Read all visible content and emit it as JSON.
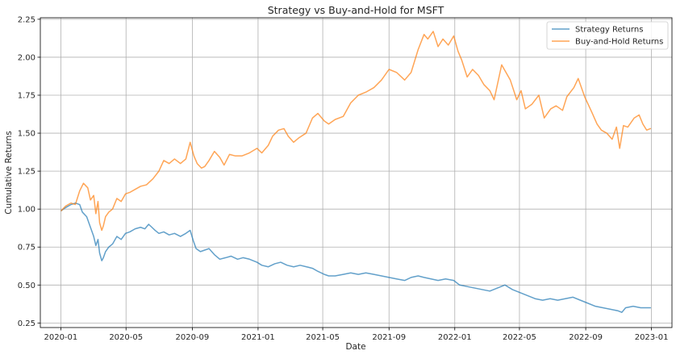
{
  "chart_data": {
    "type": "line",
    "title": "Strategy vs Buy-and-Hold for MSFT",
    "xlabel": "Date",
    "ylabel": "Cumulative Returns",
    "xlim": [
      "2019-11-24",
      "2023-02-08"
    ],
    "ylim": [
      0.22,
      2.26
    ],
    "grid": true,
    "legend_position": "top-right",
    "x_ticks": [
      {
        "date": "2020-01-01",
        "label": "2020-01"
      },
      {
        "date": "2020-05-01",
        "label": "2020-05"
      },
      {
        "date": "2020-09-01",
        "label": "2020-09"
      },
      {
        "date": "2021-01-01",
        "label": "2021-01"
      },
      {
        "date": "2021-05-01",
        "label": "2021-05"
      },
      {
        "date": "2021-09-01",
        "label": "2021-09"
      },
      {
        "date": "2022-01-01",
        "label": "2022-01"
      },
      {
        "date": "2022-05-01",
        "label": "2022-05"
      },
      {
        "date": "2022-09-01",
        "label": "2022-09"
      },
      {
        "date": "2023-01-01",
        "label": "2023-01"
      }
    ],
    "y_ticks": [
      {
        "value": 0.25,
        "label": "0.25"
      },
      {
        "value": 0.5,
        "label": "0.50"
      },
      {
        "value": 0.75,
        "label": "0.75"
      },
      {
        "value": 1.0,
        "label": "1.00"
      },
      {
        "value": 1.25,
        "label": "1.25"
      },
      {
        "value": 1.5,
        "label": "1.50"
      },
      {
        "value": 1.75,
        "label": "1.75"
      },
      {
        "value": 2.0,
        "label": "2.00"
      },
      {
        "value": 2.25,
        "label": "2.25"
      }
    ],
    "series": [
      {
        "name": "Strategy Returns",
        "color": "#1f77b4",
        "points": [
          [
            "2020-01-02",
            0.99
          ],
          [
            "2020-01-10",
            1.01
          ],
          [
            "2020-01-20",
            1.03
          ],
          [
            "2020-01-28",
            1.04
          ],
          [
            "2020-02-05",
            1.03
          ],
          [
            "2020-02-10",
            0.98
          ],
          [
            "2020-02-18",
            0.95
          ],
          [
            "2020-02-25",
            0.88
          ],
          [
            "2020-03-02",
            0.82
          ],
          [
            "2020-03-06",
            0.76
          ],
          [
            "2020-03-10",
            0.8
          ],
          [
            "2020-03-13",
            0.71
          ],
          [
            "2020-03-17",
            0.66
          ],
          [
            "2020-03-20",
            0.68
          ],
          [
            "2020-03-24",
            0.72
          ],
          [
            "2020-03-30",
            0.75
          ],
          [
            "2020-04-06",
            0.77
          ],
          [
            "2020-04-14",
            0.82
          ],
          [
            "2020-04-22",
            0.8
          ],
          [
            "2020-04-30",
            0.84
          ],
          [
            "2020-05-08",
            0.85
          ],
          [
            "2020-05-18",
            0.87
          ],
          [
            "2020-05-28",
            0.88
          ],
          [
            "2020-06-05",
            0.87
          ],
          [
            "2020-06-12",
            0.9
          ],
          [
            "2020-06-18",
            0.88
          ],
          [
            "2020-06-24",
            0.86
          ],
          [
            "2020-07-01",
            0.84
          ],
          [
            "2020-07-10",
            0.85
          ],
          [
            "2020-07-20",
            0.83
          ],
          [
            "2020-07-30",
            0.84
          ],
          [
            "2020-08-10",
            0.82
          ],
          [
            "2020-08-20",
            0.84
          ],
          [
            "2020-08-28",
            0.86
          ],
          [
            "2020-09-03",
            0.79
          ],
          [
            "2020-09-08",
            0.74
          ],
          [
            "2020-09-16",
            0.72
          ],
          [
            "2020-09-24",
            0.73
          ],
          [
            "2020-10-02",
            0.74
          ],
          [
            "2020-10-12",
            0.7
          ],
          [
            "2020-10-22",
            0.67
          ],
          [
            "2020-11-02",
            0.68
          ],
          [
            "2020-11-12",
            0.69
          ],
          [
            "2020-11-24",
            0.67
          ],
          [
            "2020-12-04",
            0.68
          ],
          [
            "2020-12-16",
            0.67
          ],
          [
            "2020-12-30",
            0.65
          ],
          [
            "2021-01-08",
            0.63
          ],
          [
            "2021-01-20",
            0.62
          ],
          [
            "2021-02-01",
            0.64
          ],
          [
            "2021-02-12",
            0.65
          ],
          [
            "2021-02-24",
            0.63
          ],
          [
            "2021-03-08",
            0.62
          ],
          [
            "2021-03-20",
            0.63
          ],
          [
            "2021-04-01",
            0.62
          ],
          [
            "2021-04-12",
            0.61
          ],
          [
            "2021-04-22",
            0.59
          ],
          [
            "2021-05-04",
            0.57
          ],
          [
            "2021-05-12",
            0.56
          ],
          [
            "2021-05-24",
            0.56
          ],
          [
            "2021-06-08",
            0.57
          ],
          [
            "2021-06-22",
            0.58
          ],
          [
            "2021-07-06",
            0.57
          ],
          [
            "2021-07-20",
            0.58
          ],
          [
            "2021-08-04",
            0.57
          ],
          [
            "2021-08-18",
            0.56
          ],
          [
            "2021-09-01",
            0.55
          ],
          [
            "2021-09-15",
            0.54
          ],
          [
            "2021-09-30",
            0.53
          ],
          [
            "2021-10-12",
            0.55
          ],
          [
            "2021-10-25",
            0.56
          ],
          [
            "2021-11-05",
            0.55
          ],
          [
            "2021-11-18",
            0.54
          ],
          [
            "2021-12-01",
            0.53
          ],
          [
            "2021-12-15",
            0.54
          ],
          [
            "2021-12-30",
            0.53
          ],
          [
            "2022-01-10",
            0.5
          ],
          [
            "2022-01-24",
            0.49
          ],
          [
            "2022-02-07",
            0.48
          ],
          [
            "2022-02-21",
            0.47
          ],
          [
            "2022-03-07",
            0.46
          ],
          [
            "2022-03-21",
            0.48
          ],
          [
            "2022-04-04",
            0.5
          ],
          [
            "2022-04-18",
            0.47
          ],
          [
            "2022-05-02",
            0.45
          ],
          [
            "2022-05-16",
            0.43
          ],
          [
            "2022-05-30",
            0.41
          ],
          [
            "2022-06-13",
            0.4
          ],
          [
            "2022-06-27",
            0.41
          ],
          [
            "2022-07-11",
            0.4
          ],
          [
            "2022-07-25",
            0.41
          ],
          [
            "2022-08-08",
            0.42
          ],
          [
            "2022-08-22",
            0.4
          ],
          [
            "2022-09-05",
            0.38
          ],
          [
            "2022-09-19",
            0.36
          ],
          [
            "2022-10-03",
            0.35
          ],
          [
            "2022-10-17",
            0.34
          ],
          [
            "2022-10-31",
            0.33
          ],
          [
            "2022-11-07",
            0.32
          ],
          [
            "2022-11-14",
            0.35
          ],
          [
            "2022-11-28",
            0.36
          ],
          [
            "2022-12-12",
            0.35
          ],
          [
            "2022-12-23",
            0.35
          ],
          [
            "2022-12-30",
            0.35
          ]
        ]
      },
      {
        "name": "Buy-and-Hold Returns",
        "color": "#ff7f0e",
        "points": [
          [
            "2020-01-02",
            0.99
          ],
          [
            "2020-01-10",
            1.02
          ],
          [
            "2020-01-20",
            1.04
          ],
          [
            "2020-01-28",
            1.03
          ],
          [
            "2020-02-05",
            1.12
          ],
          [
            "2020-02-12",
            1.17
          ],
          [
            "2020-02-20",
            1.14
          ],
          [
            "2020-02-25",
            1.06
          ],
          [
            "2020-03-02",
            1.09
          ],
          [
            "2020-03-06",
            0.97
          ],
          [
            "2020-03-10",
            1.05
          ],
          [
            "2020-03-13",
            0.91
          ],
          [
            "2020-03-17",
            0.86
          ],
          [
            "2020-03-20",
            0.89
          ],
          [
            "2020-03-24",
            0.95
          ],
          [
            "2020-03-30",
            0.98
          ],
          [
            "2020-04-06",
            1.0
          ],
          [
            "2020-04-14",
            1.07
          ],
          [
            "2020-04-22",
            1.05
          ],
          [
            "2020-04-30",
            1.1
          ],
          [
            "2020-05-08",
            1.11
          ],
          [
            "2020-05-18",
            1.13
          ],
          [
            "2020-05-28",
            1.15
          ],
          [
            "2020-06-08",
            1.16
          ],
          [
            "2020-06-20",
            1.2
          ],
          [
            "2020-07-01",
            1.25
          ],
          [
            "2020-07-10",
            1.32
          ],
          [
            "2020-07-20",
            1.3
          ],
          [
            "2020-07-30",
            1.33
          ],
          [
            "2020-08-10",
            1.3
          ],
          [
            "2020-08-20",
            1.33
          ],
          [
            "2020-08-28",
            1.44
          ],
          [
            "2020-09-04",
            1.35
          ],
          [
            "2020-09-10",
            1.3
          ],
          [
            "2020-09-18",
            1.27
          ],
          [
            "2020-09-24",
            1.28
          ],
          [
            "2020-10-02",
            1.32
          ],
          [
            "2020-10-12",
            1.38
          ],
          [
            "2020-10-22",
            1.34
          ],
          [
            "2020-10-30",
            1.29
          ],
          [
            "2020-11-09",
            1.36
          ],
          [
            "2020-11-20",
            1.35
          ],
          [
            "2020-12-02",
            1.35
          ],
          [
            "2020-12-16",
            1.37
          ],
          [
            "2020-12-30",
            1.4
          ],
          [
            "2021-01-08",
            1.37
          ],
          [
            "2021-01-20",
            1.42
          ],
          [
            "2021-01-28",
            1.48
          ],
          [
            "2021-02-08",
            1.52
          ],
          [
            "2021-02-18",
            1.53
          ],
          [
            "2021-02-26",
            1.48
          ],
          [
            "2021-03-08",
            1.44
          ],
          [
            "2021-03-18",
            1.47
          ],
          [
            "2021-03-31",
            1.5
          ],
          [
            "2021-04-12",
            1.6
          ],
          [
            "2021-04-22",
            1.63
          ],
          [
            "2021-05-04",
            1.58
          ],
          [
            "2021-05-12",
            1.56
          ],
          [
            "2021-05-24",
            1.59
          ],
          [
            "2021-06-08",
            1.61
          ],
          [
            "2021-06-22",
            1.7
          ],
          [
            "2021-07-06",
            1.75
          ],
          [
            "2021-07-20",
            1.77
          ],
          [
            "2021-08-04",
            1.8
          ],
          [
            "2021-08-18",
            1.85
          ],
          [
            "2021-09-01",
            1.92
          ],
          [
            "2021-09-15",
            1.9
          ],
          [
            "2021-09-30",
            1.85
          ],
          [
            "2021-10-12",
            1.9
          ],
          [
            "2021-10-25",
            2.05
          ],
          [
            "2021-11-05",
            2.15
          ],
          [
            "2021-11-12",
            2.12
          ],
          [
            "2021-11-22",
            2.17
          ],
          [
            "2021-12-01",
            2.07
          ],
          [
            "2021-12-10",
            2.12
          ],
          [
            "2021-12-20",
            2.08
          ],
          [
            "2021-12-30",
            2.14
          ],
          [
            "2022-01-07",
            2.04
          ],
          [
            "2022-01-14",
            1.98
          ],
          [
            "2022-01-24",
            1.87
          ],
          [
            "2022-02-03",
            1.92
          ],
          [
            "2022-02-14",
            1.88
          ],
          [
            "2022-02-24",
            1.82
          ],
          [
            "2022-03-07",
            1.78
          ],
          [
            "2022-03-15",
            1.72
          ],
          [
            "2022-03-29",
            1.95
          ],
          [
            "2022-04-06",
            1.9
          ],
          [
            "2022-04-14",
            1.85
          ],
          [
            "2022-04-26",
            1.72
          ],
          [
            "2022-05-04",
            1.78
          ],
          [
            "2022-05-12",
            1.66
          ],
          [
            "2022-05-24",
            1.69
          ],
          [
            "2022-06-06",
            1.75
          ],
          [
            "2022-06-16",
            1.6
          ],
          [
            "2022-06-28",
            1.66
          ],
          [
            "2022-07-08",
            1.68
          ],
          [
            "2022-07-20",
            1.65
          ],
          [
            "2022-07-28",
            1.74
          ],
          [
            "2022-08-10",
            1.8
          ],
          [
            "2022-08-18",
            1.86
          ],
          [
            "2022-08-30",
            1.74
          ],
          [
            "2022-09-12",
            1.64
          ],
          [
            "2022-09-22",
            1.56
          ],
          [
            "2022-09-30",
            1.52
          ],
          [
            "2022-10-10",
            1.5
          ],
          [
            "2022-10-20",
            1.46
          ],
          [
            "2022-10-28",
            1.54
          ],
          [
            "2022-11-03",
            1.4
          ],
          [
            "2022-11-10",
            1.55
          ],
          [
            "2022-11-18",
            1.54
          ],
          [
            "2022-11-30",
            1.6
          ],
          [
            "2022-12-09",
            1.62
          ],
          [
            "2022-12-16",
            1.56
          ],
          [
            "2022-12-23",
            1.52
          ],
          [
            "2022-12-30",
            1.53
          ]
        ]
      }
    ]
  }
}
